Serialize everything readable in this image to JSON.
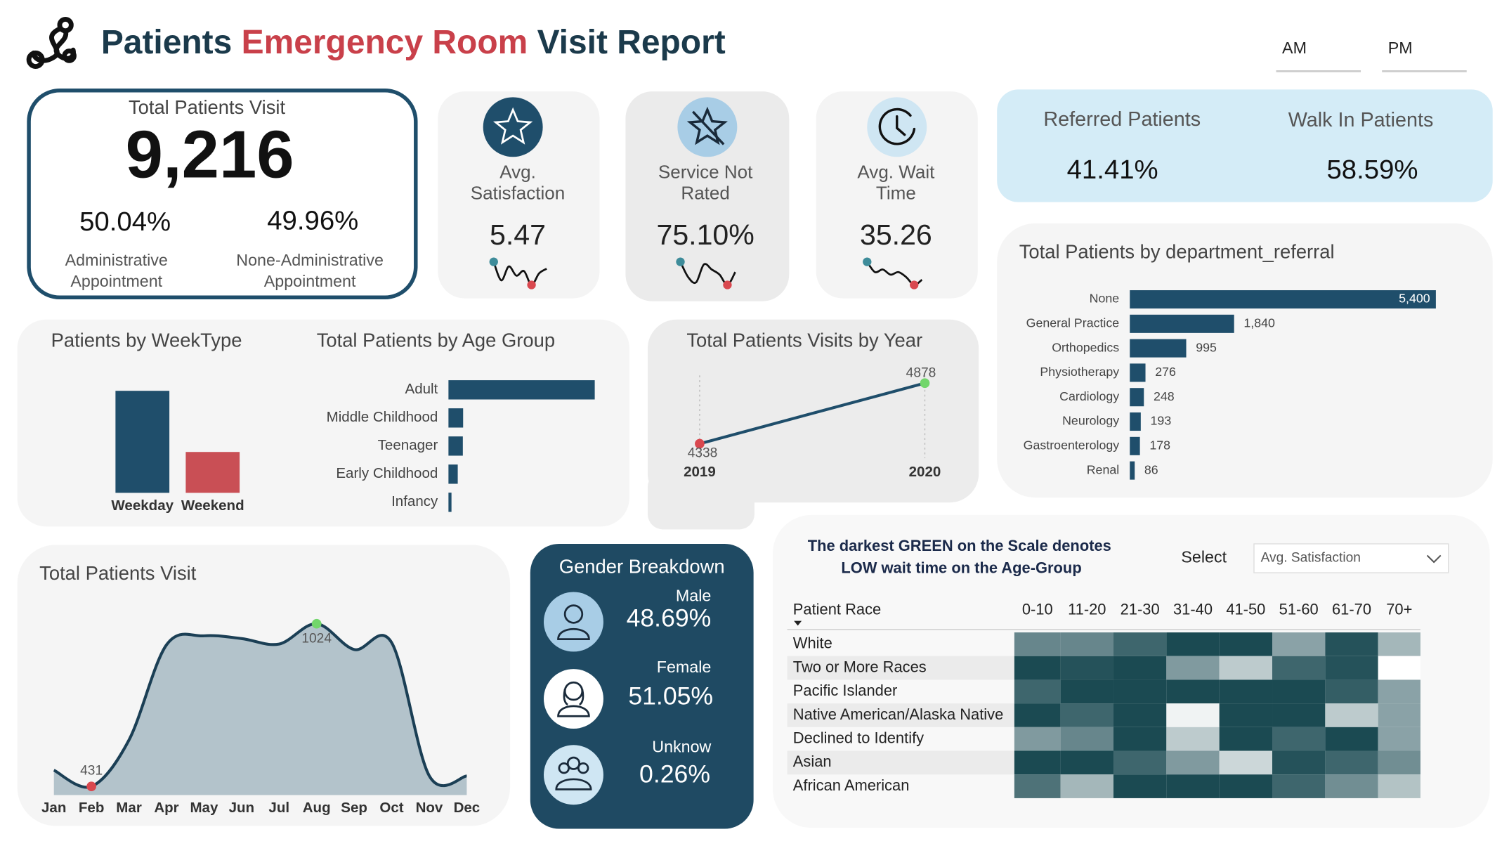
{
  "header": {
    "title": [
      "Patients",
      "Emergency Room",
      "Visit Report"
    ],
    "time_filters": [
      "AM",
      "PM"
    ]
  },
  "total_visits": {
    "title": "Total Patients Visit",
    "value": "9,216",
    "split": [
      {
        "value": "50.04%",
        "label": "Administrative Appointment"
      },
      {
        "value": "49.96%",
        "label": "None-Administrative Appointment"
      }
    ]
  },
  "kpi_cards": [
    {
      "label": "Avg. Satisfaction",
      "value": "5.47",
      "trend": [
        5.6,
        5.2,
        5.5,
        5.3,
        5.4,
        5.1,
        5.35,
        5.45
      ]
    },
    {
      "label": "Service Not Rated",
      "value": "75.10%",
      "trend": [
        78,
        72,
        70,
        77,
        75,
        73,
        69,
        74
      ]
    },
    {
      "label": "Avg. Wait Time",
      "value": "35.26",
      "trend": [
        39,
        35,
        36,
        34,
        35,
        33,
        30,
        32
      ]
    }
  ],
  "referral_split": [
    {
      "label": "Referred Patients",
      "value": "41.41%"
    },
    {
      "label": "Walk In Patients",
      "value": "58.59%"
    }
  ],
  "gender": {
    "title": "Gender Breakdown",
    "items": [
      {
        "label": "Male",
        "value": "48.69%"
      },
      {
        "label": "Female",
        "value": "51.05%"
      },
      {
        "label": "Unknow",
        "value": "0.26%"
      }
    ]
  },
  "heatmap_controls": {
    "note": [
      "The darkest GREEN on the Scale denotes",
      "LOW wait time on the Age-Group"
    ],
    "select_label": "Select",
    "selected": "Avg. Satisfaction"
  },
  "chart_data": [
    {
      "type": "hbar",
      "title": "Total Patients by department_referral",
      "categories": [
        "None",
        "General Practice",
        "Orthopedics",
        "Physiotherapy",
        "Cardiology",
        "Neurology",
        "Gastroenterology",
        "Renal"
      ],
      "values": [
        5400,
        1840,
        995,
        276,
        248,
        193,
        178,
        86
      ],
      "value_labels": [
        "5,400",
        "1,840",
        "995",
        "276",
        "248",
        "193",
        "178",
        "86"
      ],
      "color": "#1f4e6b"
    },
    {
      "type": "bar",
      "title": "Patients by WeekType",
      "categories": [
        "Weekday",
        "Weekend"
      ],
      "values": [
        6580,
        2636
      ],
      "colors": [
        "#1f4e6b",
        "#c94f55"
      ]
    },
    {
      "type": "hbar",
      "title": "Total Patients by Age Group",
      "categories": [
        "Adult",
        "Middle Childhood",
        "Teenager",
        "Early Childhood",
        "Infancy"
      ],
      "values": [
        7186,
        720,
        706,
        456,
        148
      ],
      "color": "#1f4e6b"
    },
    {
      "type": "line",
      "title": "Total Patients Visits by Year",
      "categories": [
        "2019",
        "2020"
      ],
      "values": [
        4338,
        4878
      ],
      "color": "#1f4e6b",
      "min_color": "#d9484f",
      "max_color": "#72d66b"
    },
    {
      "type": "area",
      "title": "Total Patients Visit",
      "categories": [
        "Jan",
        "Feb",
        "Mar",
        "Apr",
        "May",
        "Jun",
        "Jul",
        "Aug",
        "Sep",
        "Oct",
        "Nov",
        "Dec"
      ],
      "values": [
        490,
        431,
        600,
        947,
        980,
        970,
        950,
        1024,
        930,
        955,
        470,
        469
      ],
      "color": "#1b3f55",
      "fill": "#b3c3cb",
      "min_color": "#d9484f",
      "max_color": "#72d66b"
    },
    {
      "type": "heatmap",
      "row_header": "Patient Race",
      "columns": [
        "0-10",
        "11-20",
        "21-30",
        "31-40",
        "41-50",
        "51-60",
        "61-70",
        "70+"
      ],
      "rows": [
        "White",
        "Two or More Races",
        "Pacific Islander",
        "Native American/Alaska Native",
        "Declined to Identify",
        "Asian",
        "African American"
      ],
      "values": [
        [
          6.0,
          6.0,
          6.8,
          7.5,
          7.5,
          5.3,
          7.3,
          4.8
        ],
        [
          7.5,
          7.3,
          7.5,
          5.5,
          4.3,
          6.8,
          7.3,
          3.0
        ],
        [
          6.8,
          7.5,
          7.5,
          7.5,
          7.5,
          7.5,
          7.0,
          5.3
        ],
        [
          7.5,
          6.8,
          7.5,
          3.3,
          7.5,
          7.5,
          4.3,
          5.3
        ],
        [
          5.5,
          6.0,
          7.5,
          4.3,
          7.5,
          6.8,
          7.5,
          5.3
        ],
        [
          7.5,
          7.5,
          6.8,
          5.5,
          4.0,
          7.3,
          6.8,
          5.8
        ],
        [
          6.5,
          4.8,
          7.5,
          7.5,
          7.5,
          6.8,
          5.8,
          4.5
        ]
      ],
      "color_scale": [
        "#ffffff",
        "#1b4a52"
      ]
    }
  ]
}
